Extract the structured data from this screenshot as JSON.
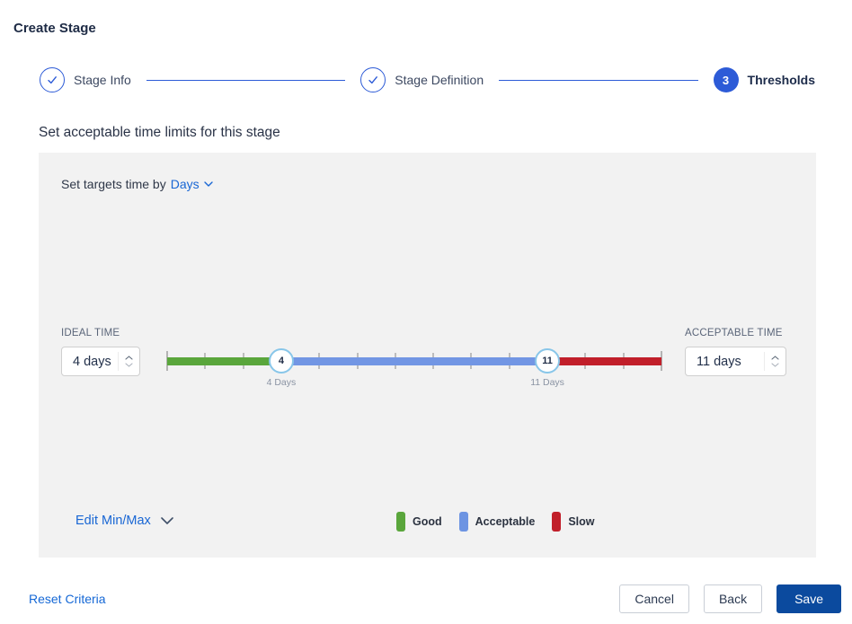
{
  "page_title": "Create Stage",
  "stepper": {
    "steps": [
      {
        "label": "Stage Info",
        "state": "complete"
      },
      {
        "label": "Stage Definition",
        "state": "complete"
      },
      {
        "label": "Thresholds",
        "state": "current",
        "number": "3"
      }
    ]
  },
  "section": {
    "heading": "Set acceptable time limits for this stage",
    "targets_prefix": "Set targets time by",
    "targets_unit": "Days"
  },
  "slider": {
    "min_day": 1,
    "max_day": 14,
    "ideal_value": 4,
    "acceptable_value": 11,
    "ideal_label": "IDEAL TIME",
    "acceptable_label": "ACCEPTABLE TIME",
    "ideal_input_value": "4 days",
    "acceptable_input_value": "11 days",
    "ideal_handle_label": "4",
    "acceptable_handle_label": "11",
    "ideal_tick_label": "4 Days",
    "acceptable_tick_label": "11 Days",
    "colors": {
      "good": "#5aa63c",
      "acceptable": "#7296e4",
      "slow": "#c11f2a"
    }
  },
  "legend": [
    {
      "label": "Good",
      "color": "#5aa63c"
    },
    {
      "label": "Acceptable",
      "color": "#6d94e2"
    },
    {
      "label": "Slow",
      "color": "#c11f2a"
    }
  ],
  "edit_minmax_label": "Edit Min/Max",
  "footer": {
    "reset_label": "Reset Criteria",
    "cancel_label": "Cancel",
    "back_label": "Back",
    "save_label": "Save"
  },
  "icons": {
    "step_complete": "check-icon",
    "unit_dropdown": "chevron-down-icon",
    "edit_minmax": "chevron-down-icon",
    "spinner": "chevron-up-icon / chevron-down-icon"
  },
  "theme": {
    "stepper_blue": "#2d5bd7",
    "link_blue": "#1866d4",
    "save_navy": "#0b4a9e",
    "panel_gray": "#f2f2f2",
    "handle_ring": "#88c6e9"
  }
}
